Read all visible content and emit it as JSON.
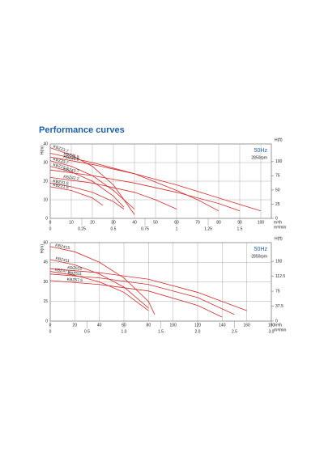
{
  "heading": "Performance curves",
  "chart_data": [
    {
      "type": "line",
      "annotations": [
        "50Hz",
        "2850rpm"
      ],
      "ylabel": "H(m)",
      "y2label": "H(ft)",
      "xlabel": "m³/h",
      "x2label": "m³/min",
      "xlim": [
        0,
        105
      ],
      "xticks": [
        0,
        10,
        20,
        30,
        40,
        50,
        60,
        70,
        80,
        90,
        100
      ],
      "x2lim": [
        0,
        1.75
      ],
      "x2ticks": [
        0,
        0.25,
        0.5,
        0.75,
        1,
        1.25,
        1.5
      ],
      "ylim": [
        0,
        40
      ],
      "yticks": [
        0,
        10,
        20,
        30,
        40
      ],
      "y2lim": [
        0,
        131.2
      ],
      "y2ticks": [
        0,
        25,
        50,
        75,
        100
      ],
      "grid": true,
      "series": [
        {
          "name": "KBZ23.7",
          "color": "#d62a2a",
          "x": [
            0,
            10,
            20,
            30,
            40
          ],
          "values": [
            38,
            34,
            28,
            18,
            2
          ]
        },
        {
          "name": "KBZ35.5",
          "color": "#d62a2a",
          "x": [
            0,
            20,
            40,
            60,
            70,
            80
          ],
          "values": [
            35,
            30,
            24,
            15,
            10,
            4
          ]
        },
        {
          "name": "KBZ22.2",
          "color": "#d62a2a",
          "x": [
            0,
            10,
            20,
            30,
            35
          ],
          "values": [
            28,
            25,
            20,
            12,
            6
          ]
        },
        {
          "name": "KBZ33.7",
          "color": "#d62a2a",
          "x": [
            0,
            10,
            20,
            30,
            40
          ],
          "values": [
            31,
            28,
            23,
            15,
            5
          ]
        },
        {
          "name": "KBZ45.5",
          "color": "#d62a2a",
          "x": [
            0,
            20,
            40,
            60,
            80,
            100
          ],
          "values": [
            33,
            29,
            24,
            18,
            11,
            4
          ]
        },
        {
          "name": "KBZ43.7",
          "color": "#d62a2a",
          "x": [
            0,
            20,
            40,
            60,
            80,
            90
          ],
          "values": [
            26,
            23,
            19,
            14,
            8,
            4
          ]
        },
        {
          "name": "KBZ31.5",
          "color": "#d62a2a",
          "x": [
            0,
            10,
            20,
            30,
            35
          ],
          "values": [
            19,
            17,
            14,
            9,
            5
          ]
        },
        {
          "name": "KBZ21.5",
          "color": "#d62a2a",
          "x": [
            0,
            10,
            20,
            25
          ],
          "values": [
            17,
            15,
            11,
            7
          ]
        },
        {
          "name": "KBZ42.2",
          "color": "#d62a2a",
          "x": [
            0,
            20,
            40,
            50,
            60
          ],
          "values": [
            22,
            19,
            14,
            10,
            5
          ]
        }
      ]
    },
    {
      "type": "line",
      "annotations": [
        "50Hz",
        "2850rpm"
      ],
      "ylabel": "H(m)",
      "y2label": "H(ft)",
      "xlabel": "m³/h",
      "x2label": "m³/min",
      "xlim": [
        0,
        180
      ],
      "xticks": [
        0,
        20,
        40,
        60,
        80,
        100,
        120,
        140,
        160,
        180
      ],
      "x2lim": [
        0,
        3
      ],
      "x2ticks": [
        0,
        0.5,
        {
          "value": 1,
          "label": "1.0"
        },
        1.5,
        {
          "value": 2,
          "label": "2.0"
        },
        2.5,
        {
          "value": 3,
          "label": "3.0"
        }
      ],
      "ylim": [
        0,
        60
      ],
      "yticks": [
        0,
        15,
        30,
        45,
        60
      ],
      "y2lim": [
        0,
        196.85
      ],
      "y2ticks": [
        0,
        37.5,
        75,
        112.5,
        150
      ],
      "grid": true,
      "series": [
        {
          "name": "KBZ415",
          "color": "#d62a2a",
          "x": [
            0,
            20,
            40,
            60,
            80,
            85
          ],
          "values": [
            57,
            53,
            45,
            33,
            15,
            5
          ]
        },
        {
          "name": "KBZ411",
          "color": "#d62a2a",
          "x": [
            0,
            20,
            40,
            60,
            80
          ],
          "values": [
            47,
            43,
            36,
            26,
            10
          ]
        },
        {
          "name": "KBZ47.5",
          "color": "#d62a2a",
          "x": [
            0,
            20,
            40,
            60,
            80
          ],
          "values": [
            38,
            35,
            30,
            22,
            8
          ]
        },
        {
          "name": "KBZ510",
          "color": "#d62a2a",
          "x": [
            0,
            40,
            80,
            120,
            160
          ],
          "values": [
            40,
            37,
            32,
            22,
            8
          ]
        },
        {
          "name": "KBZ511",
          "color": "#d62a2a",
          "x": [
            0,
            40,
            80,
            120,
            150
          ],
          "values": [
            36,
            33,
            28,
            18,
            5
          ]
        },
        {
          "name": "KBZ57.5",
          "color": "#d62a2a",
          "x": [
            0,
            40,
            80,
            120,
            140
          ],
          "values": [
            31,
            28,
            23,
            12,
            3
          ]
        }
      ]
    }
  ]
}
